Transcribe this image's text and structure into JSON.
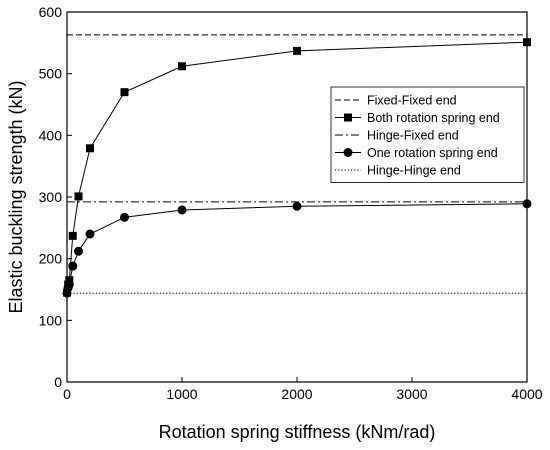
{
  "chart_data": {
    "type": "line",
    "title": "",
    "xlabel": "Rotation spring stiffness (kNm/rad)",
    "ylabel": "Elastic buckling strength (kN)",
    "xlim": [
      0,
      4000
    ],
    "ylim": [
      0,
      600
    ],
    "xticks": [
      0,
      1000,
      2000,
      3000,
      4000
    ],
    "yticks": [
      0,
      100,
      200,
      300,
      400,
      500,
      600
    ],
    "grid": false,
    "legend_position": "center-right",
    "series": [
      {
        "name": "Fixed-Fixed end",
        "style": "dashed",
        "marker": "none",
        "color": "#000000",
        "x": [
          0,
          4000
        ],
        "y": [
          563,
          563
        ]
      },
      {
        "name": "Both rotation spring end",
        "style": "solid",
        "marker": "square",
        "color": "#000000",
        "x": [
          0,
          10,
          20,
          50,
          100,
          200,
          500,
          1000,
          2000,
          4000
        ],
        "y": [
          145,
          158,
          165,
          237,
          301,
          379,
          470,
          512,
          537,
          551
        ]
      },
      {
        "name": "Hinge-Fixed end",
        "style": "dashdot",
        "marker": "none",
        "color": "#000000",
        "x": [
          0,
          4000
        ],
        "y": [
          292,
          292
        ]
      },
      {
        "name": "One rotation spring end",
        "style": "solid",
        "marker": "circle",
        "color": "#000000",
        "x": [
          0,
          10,
          20,
          50,
          100,
          200,
          500,
          1000,
          2000,
          4000
        ],
        "y": [
          144,
          153,
          158,
          188,
          212,
          240,
          267,
          279,
          285,
          289
        ]
      },
      {
        "name": "Hinge-Hinge end",
        "style": "dotted",
        "marker": "none",
        "color": "#000000",
        "x": [
          0,
          4000
        ],
        "y": [
          144,
          144
        ]
      }
    ]
  }
}
